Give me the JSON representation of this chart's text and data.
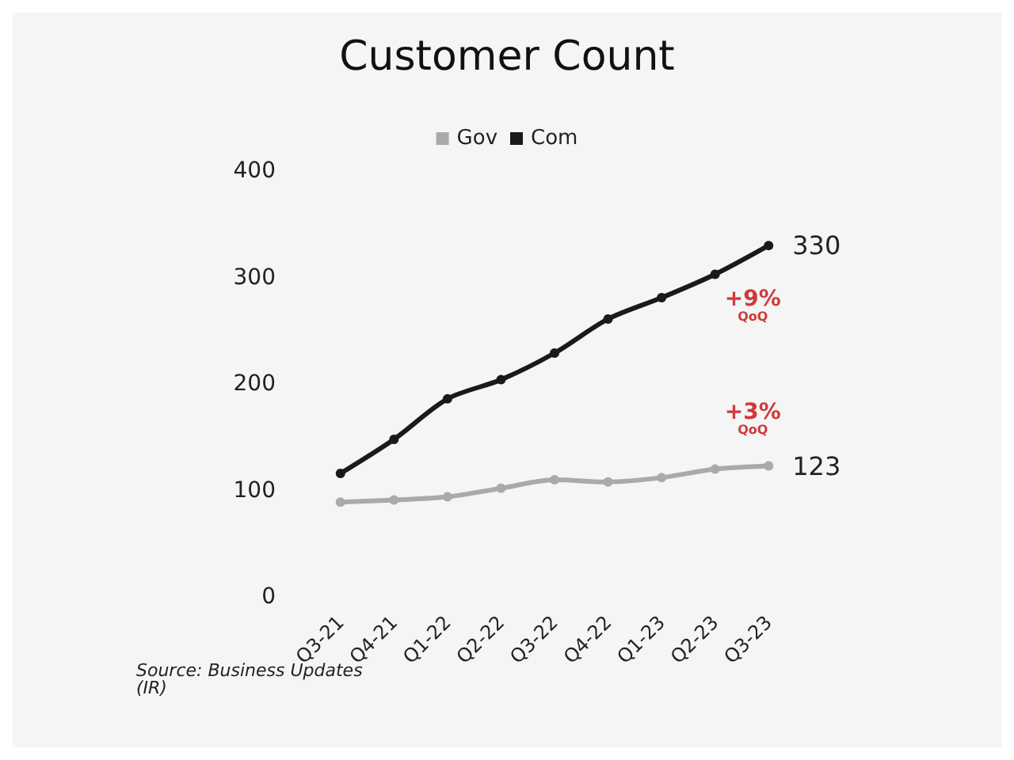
{
  "chart_data": {
    "type": "line",
    "title": "Customer Count",
    "categories": [
      "Q3-21",
      "Q4-21",
      "Q1-22",
      "Q2-22",
      "Q3-22",
      "Q4-22",
      "Q1-23",
      "Q2-23",
      "Q3-23"
    ],
    "series": [
      {
        "name": "Gov",
        "color": "#aaaaaa",
        "values": [
          89,
          91,
          94,
          102,
          110,
          108,
          112,
          120,
          123
        ],
        "value_labels": [
          null,
          null,
          null,
          null,
          null,
          null,
          null,
          null,
          "123"
        ]
      },
      {
        "name": "Com",
        "color": "#1a1a1a",
        "values": [
          116,
          148,
          186,
          204,
          229,
          261,
          281,
          303,
          330
        ],
        "value_labels": [
          null,
          null,
          null,
          null,
          null,
          null,
          null,
          null,
          "330"
        ]
      }
    ],
    "ylim": [
      0,
      400
    ],
    "yticks": [
      0,
      100,
      200,
      300,
      400
    ],
    "grid": false,
    "legend": "top",
    "marker": "circle",
    "line_style": "solid",
    "annotations": [
      "+3%\nQoQ",
      "+9%\nQoQ",
      "Source: Business Updates (IR)"
    ]
  }
}
